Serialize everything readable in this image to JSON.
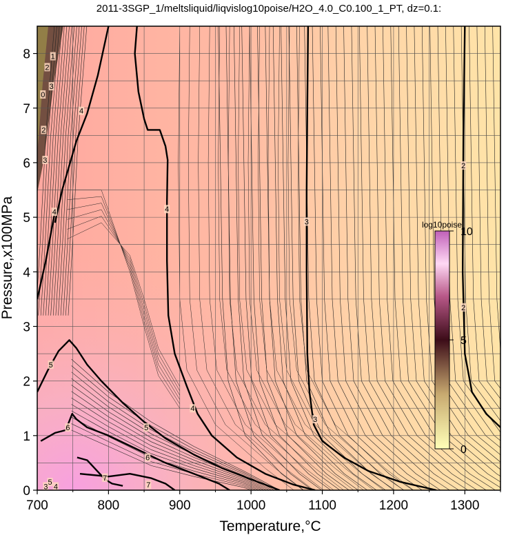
{
  "chart_data": {
    "type": "heatmap",
    "title": "2011-3SGP_1/meltsliquid/liqvislog10poise/H2O_4.0_C0.100_1_PT, dz=0.1:",
    "xlabel": "Temperature,°C",
    "ylabel": "Pressure,x100MPa",
    "xlim": [
      700,
      1350
    ],
    "ylim": [
      0,
      8.5
    ],
    "x_ticks": [
      "700",
      "800",
      "900",
      "1000",
      "1100",
      "1200",
      "1300"
    ],
    "y_ticks": [
      "0",
      "1",
      "2",
      "3",
      "4",
      "5",
      "6",
      "7",
      "8"
    ],
    "grid": true,
    "colorbar": {
      "title": "log10poise",
      "min": 0,
      "max": 10,
      "tick_labels": [
        "0",
        "5",
        "10"
      ],
      "colors": [
        "#ffffb0",
        "#c8b07a",
        "#4a1020",
        "#c06090",
        "#ffd8f0",
        "#d070c0"
      ],
      "position": "right-inside"
    },
    "background_gradient": {
      "low_T_color": "#ffb0a8",
      "high_T_color": "#ffe2a8",
      "low_P_low_T_color": "#f8a8d8"
    },
    "contour_labels_major": [
      {
        "value": "4",
        "x": 762,
        "y": 6.95
      },
      {
        "value": "4",
        "x": 882,
        "y": 5.15
      },
      {
        "value": "4",
        "x": 918,
        "y": 1.5
      },
      {
        "value": "4",
        "x": 724,
        "y": 5.1
      },
      {
        "value": "3",
        "x": 1078,
        "y": 4.92
      },
      {
        "value": "3",
        "x": 1090,
        "y": 1.3
      },
      {
        "value": "2",
        "x": 1298,
        "y": 5.95
      },
      {
        "value": "2",
        "x": 1298,
        "y": 3.35
      },
      {
        "value": "5",
        "x": 719,
        "y": 2.3
      },
      {
        "value": "5",
        "x": 853,
        "y": 1.15
      },
      {
        "value": "6",
        "x": 743,
        "y": 1.15
      },
      {
        "value": "6",
        "x": 855,
        "y": 0.6
      },
      {
        "value": "7",
        "x": 795,
        "y": 0.23
      },
      {
        "value": "7",
        "x": 856,
        "y": 0.1
      },
      {
        "value": "3",
        "x": 711,
        "y": 6.05
      },
      {
        "value": "3",
        "x": 720,
        "y": 7.4
      },
      {
        "value": "2",
        "x": 709,
        "y": 6.6
      },
      {
        "value": "2",
        "x": 714,
        "y": 7.75
      },
      {
        "value": "1",
        "x": 722,
        "y": 7.95
      },
      {
        "value": "0",
        "x": 708,
        "y": 7.25
      },
      {
        "value": "3",
        "x": 712,
        "y": 0.07
      },
      {
        "value": "4",
        "x": 726,
        "y": 0.07
      },
      {
        "value": "5",
        "x": 718,
        "y": 0.15
      }
    ],
    "contour_lines_major": [
      {
        "level": 4,
        "points": [
          [
            725,
            4.9
          ],
          [
            735,
            5.5
          ],
          [
            755,
            6.4
          ],
          [
            770,
            6.9
          ],
          [
            785,
            7.6
          ],
          [
            800,
            8.5
          ]
        ]
      },
      {
        "level": 4,
        "points": [
          [
            840,
            8.5
          ],
          [
            837,
            8.0
          ],
          [
            842,
            7.3
          ],
          [
            850,
            6.8
          ],
          [
            855,
            6.6
          ],
          [
            872,
            6.6
          ],
          [
            880,
            6.3
          ],
          [
            883,
            6.05
          ],
          [
            882,
            5.3
          ],
          [
            882,
            4.2
          ],
          [
            884,
            3.2
          ],
          [
            893,
            2.5
          ],
          [
            910,
            1.9
          ],
          [
            925,
            1.4
          ],
          [
            945,
            1.0
          ],
          [
            980,
            0.6
          ],
          [
            1020,
            0.3
          ],
          [
            1060,
            0.1
          ],
          [
            1090,
            0.0
          ]
        ]
      },
      {
        "level": 4,
        "points": [
          [
            700,
            3.5
          ],
          [
            712,
            4.2
          ],
          [
            722,
            4.9
          ],
          [
            725,
            5.1
          ]
        ]
      },
      {
        "level": 3,
        "points": [
          [
            1080,
            8.5
          ],
          [
            1079,
            7.0
          ],
          [
            1078,
            5.5
          ],
          [
            1078,
            4.0
          ],
          [
            1079,
            2.5
          ],
          [
            1082,
            1.8
          ],
          [
            1088,
            1.2
          ],
          [
            1100,
            0.9
          ],
          [
            1130,
            0.6
          ],
          [
            1165,
            0.35
          ],
          [
            1210,
            0.15
          ],
          [
            1260,
            0.0
          ]
        ]
      },
      {
        "level": 2,
        "points": [
          [
            1300,
            8.5
          ],
          [
            1298,
            6.5
          ],
          [
            1297,
            4.0
          ],
          [
            1300,
            2.5
          ],
          [
            1310,
            1.8
          ],
          [
            1330,
            1.4
          ],
          [
            1350,
            1.15
          ]
        ]
      },
      {
        "level": 5,
        "points": [
          [
            700,
            1.8
          ],
          [
            715,
            2.2
          ],
          [
            730,
            2.55
          ],
          [
            745,
            2.75
          ],
          [
            755,
            2.6
          ],
          [
            770,
            2.3
          ],
          [
            790,
            2.0
          ],
          [
            820,
            1.6
          ],
          [
            850,
            1.25
          ],
          [
            880,
            0.95
          ],
          [
            920,
            0.65
          ],
          [
            960,
            0.4
          ],
          [
            1000,
            0.2
          ],
          [
            1030,
            0.05
          ],
          [
            1040,
            0.0
          ]
        ]
      },
      {
        "level": 6,
        "points": [
          [
            705,
            0.9
          ],
          [
            725,
            1.05
          ],
          [
            740,
            1.1
          ],
          [
            749,
            1.4
          ],
          [
            755,
            1.3
          ],
          [
            770,
            1.15
          ],
          [
            800,
            1.0
          ],
          [
            840,
            0.75
          ],
          [
            880,
            0.5
          ],
          [
            920,
            0.3
          ],
          [
            955,
            0.12
          ],
          [
            970,
            0.0
          ]
        ]
      },
      {
        "level": 7,
        "points": [
          [
            760,
            0.3
          ],
          [
            800,
            0.25
          ],
          [
            830,
            0.3
          ],
          [
            860,
            0.22
          ],
          [
            880,
            0.12
          ],
          [
            893,
            0.0
          ]
        ]
      },
      {
        "level": 8,
        "points": [
          [
            756,
            0.6
          ],
          [
            770,
            0.55
          ],
          [
            795,
            0.2
          ],
          [
            805,
            0.12
          ],
          [
            820,
            0.08
          ]
        ]
      }
    ]
  }
}
